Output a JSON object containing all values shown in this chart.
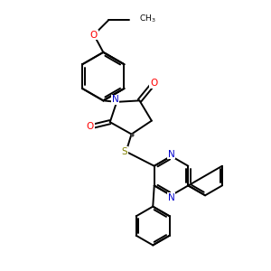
{
  "bg_color": "#ffffff",
  "atom_colors": {
    "C": "#000000",
    "N": "#0000cc",
    "O": "#ff0000",
    "S": "#808000"
  },
  "bond_color": "#000000",
  "bond_width": 1.4,
  "figsize": [
    3.0,
    3.0
  ],
  "dpi": 100,
  "xlim": [
    0,
    10
  ],
  "ylim": [
    0,
    10
  ]
}
